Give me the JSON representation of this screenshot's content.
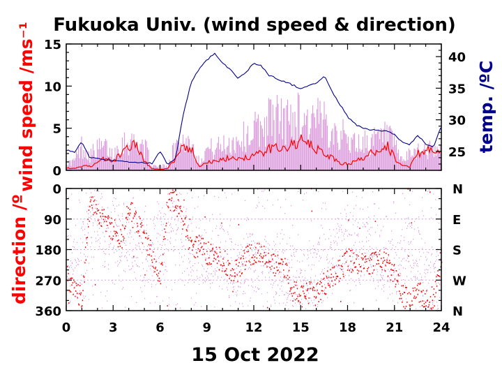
{
  "chart_data": [
    {
      "type": "line",
      "panel": "wind speed & temperature",
      "title": "Fukuoka Univ. (wind speed & direction)",
      "xlabel": "15 Oct 2022",
      "ylabel_left": "wind speed /ms⁻¹",
      "ylabel_right": "temp. /ºC",
      "xlim": [
        0,
        24
      ],
      "xticks": [
        0,
        3,
        6,
        9,
        12,
        15,
        18,
        21,
        24
      ],
      "ylim_left": [
        0,
        15
      ],
      "yticks_left": [
        0,
        5,
        10,
        15
      ],
      "ylim_right": [
        22,
        42
      ],
      "yticks_right": [
        25,
        30,
        35,
        40
      ],
      "grid": false,
      "colors": {
        "gust": "#dda0dd",
        "mean_speed": "#ff0000",
        "temperature": "#00008b"
      },
      "series": [
        {
          "role": "gust",
          "x": [
            0,
            0.5,
            1,
            1.5,
            2,
            2.5,
            3,
            3.5,
            4,
            4.5,
            5,
            5.5,
            6,
            6.5,
            7,
            7.5,
            8,
            8.5,
            9,
            9.5,
            10,
            10.5,
            11,
            11.5,
            12,
            12.5,
            13,
            13.5,
            14,
            14.5,
            15,
            15.5,
            16,
            16.5,
            17,
            17.5,
            18,
            18.5,
            19,
            19.5,
            20,
            20.5,
            21,
            21.5,
            22,
            22.5,
            23,
            23.5,
            24
          ],
          "values": [
            1.0,
            1.5,
            4.0,
            2.5,
            3.5,
            3.8,
            2.5,
            4.5,
            4.8,
            4.5,
            4.0,
            0.8,
            0.5,
            1.0,
            4.0,
            4.8,
            4.5,
            1.5,
            3.5,
            3.5,
            4.0,
            4.5,
            5.0,
            5.5,
            6.5,
            7.0,
            8.5,
            8.5,
            8.0,
            8.5,
            9.0,
            8.0,
            8.0,
            7.5,
            7.5,
            6.0,
            5.0,
            4.5,
            4.5,
            4.5,
            5.0,
            5.5,
            4.0,
            1.5,
            2.5,
            3.5,
            3.5,
            3.0,
            3.0
          ]
        },
        {
          "role": "mean_speed",
          "x": [
            0,
            0.5,
            1,
            1.5,
            2,
            2.5,
            3,
            3.5,
            4,
            4.5,
            5,
            5.5,
            6,
            6.5,
            7,
            7.5,
            8,
            8.5,
            9,
            9.5,
            10,
            10.5,
            11,
            11.5,
            12,
            12.5,
            13,
            13.5,
            14,
            14.5,
            15,
            15.5,
            16,
            16.5,
            17,
            17.5,
            18,
            18.5,
            19,
            19.5,
            20,
            20.5,
            21,
            21.5,
            22,
            22.5,
            23,
            23.5,
            24
          ],
          "values": [
            0.3,
            0.2,
            0.5,
            0.5,
            0.8,
            1.5,
            1.0,
            2.0,
            3.0,
            3.0,
            1.0,
            0.2,
            0.1,
            0.2,
            1.5,
            3.0,
            2.5,
            0.5,
            1.0,
            1.0,
            1.2,
            1.5,
            1.5,
            1.5,
            1.8,
            2.0,
            2.5,
            2.8,
            2.8,
            3.0,
            3.5,
            3.0,
            2.5,
            2.0,
            1.5,
            0.8,
            0.8,
            1.0,
            1.5,
            2.0,
            2.5,
            3.0,
            1.5,
            0.5,
            0.5,
            2.0,
            2.5,
            2.0,
            2.0
          ]
        },
        {
          "role": "temperature",
          "x": [
            0,
            0.5,
            1,
            1.5,
            2,
            2.5,
            3,
            3.5,
            4,
            4.5,
            5,
            5.5,
            6,
            6.5,
            7,
            7.5,
            8,
            8.5,
            9,
            9.5,
            10,
            10.5,
            11,
            11.5,
            12,
            12.5,
            13,
            13.5,
            14,
            14.5,
            15,
            15.5,
            16,
            16.5,
            17,
            17.5,
            18,
            18.5,
            19,
            19.5,
            20,
            20.5,
            21,
            21.5,
            22,
            22.5,
            23,
            23.5,
            24
          ],
          "values": [
            25.2,
            24.8,
            26.5,
            24.0,
            23.8,
            23.6,
            23.6,
            23.4,
            23.3,
            23.2,
            23.2,
            23.1,
            25.0,
            22.8,
            24.0,
            31.0,
            36.0,
            38.0,
            39.5,
            40.5,
            39.0,
            38.0,
            36.5,
            37.5,
            39.0,
            38.5,
            37.0,
            36.5,
            36.0,
            35.5,
            35.0,
            35.3,
            35.8,
            37.0,
            34.5,
            32.5,
            30.5,
            29.3,
            28.6,
            28.4,
            28.3,
            28.2,
            27.6,
            26.6,
            26.1,
            27.6,
            26.1,
            25.6,
            29.0
          ]
        }
      ]
    },
    {
      "type": "scatter",
      "panel": "wind direction",
      "ylabel_left": "direction /º",
      "xlim": [
        0,
        24
      ],
      "xticks": [
        0,
        3,
        6,
        9,
        12,
        15,
        18,
        21,
        24
      ],
      "xtick_labels": [
        "0",
        "3",
        "6",
        "9",
        "12",
        "15",
        "18",
        "21",
        "24"
      ],
      "ylim": [
        0,
        360
      ],
      "yticks_left": [
        0,
        90,
        180,
        270,
        360
      ],
      "yticks_right": [
        "N",
        "E",
        "S",
        "W",
        "N"
      ],
      "y_inverted": true,
      "colors": {
        "instant": "#dda0dd",
        "mean": "#ff0000"
      },
      "series": [
        {
          "role": "instant",
          "x": [
            0,
            0.5,
            1,
            1.5,
            2,
            2.5,
            3,
            3.5,
            4,
            4.5,
            5,
            5.5,
            6,
            6.5,
            7,
            7.5,
            8,
            8.5,
            9,
            9.5,
            10,
            10.5,
            11,
            11.5,
            12,
            12.5,
            13,
            13.5,
            14,
            14.5,
            15,
            15.5,
            16,
            16.5,
            17,
            17.5,
            18,
            18.5,
            19,
            19.5,
            20,
            20.5,
            21,
            21.5,
            22,
            22.5,
            23,
            23.5,
            24
          ],
          "values": [
            210,
            240,
            200,
            120,
            60,
            150,
            120,
            140,
            150,
            160,
            200,
            180,
            120,
            150,
            60,
            150,
            180,
            190,
            190,
            200,
            200,
            230,
            250,
            240,
            210,
            230,
            260,
            240,
            250,
            270,
            300,
            280,
            250,
            230,
            200,
            170,
            160,
            190,
            200,
            190,
            200,
            220,
            260,
            230,
            180,
            190,
            250,
            300,
            230
          ]
        },
        {
          "role": "mean",
          "x": [
            0,
            0.5,
            1,
            1.5,
            2,
            2.5,
            3,
            3.5,
            4,
            4.5,
            5,
            5.5,
            6,
            6.5,
            7,
            7.5,
            8,
            8.5,
            9,
            9.5,
            10,
            10.5,
            11,
            11.5,
            12,
            12.5,
            13,
            13.5,
            14,
            14.5,
            15,
            15.5,
            16,
            16.5,
            17,
            17.5,
            18,
            18.5,
            19,
            19.5,
            20,
            20.5,
            21,
            21.5,
            22,
            22.5,
            23,
            23.5,
            24
          ],
          "values": [
            250,
            300,
            320,
            40,
            70,
            100,
            120,
            150,
            60,
            100,
            140,
            200,
            270,
            30,
            40,
            100,
            180,
            170,
            190,
            200,
            210,
            240,
            240,
            200,
            190,
            200,
            210,
            230,
            240,
            300,
            320,
            310,
            310,
            280,
            260,
            240,
            210,
            220,
            210,
            220,
            200,
            220,
            260,
            310,
            340,
            300,
            330,
            320,
            200
          ]
        }
      ]
    }
  ]
}
